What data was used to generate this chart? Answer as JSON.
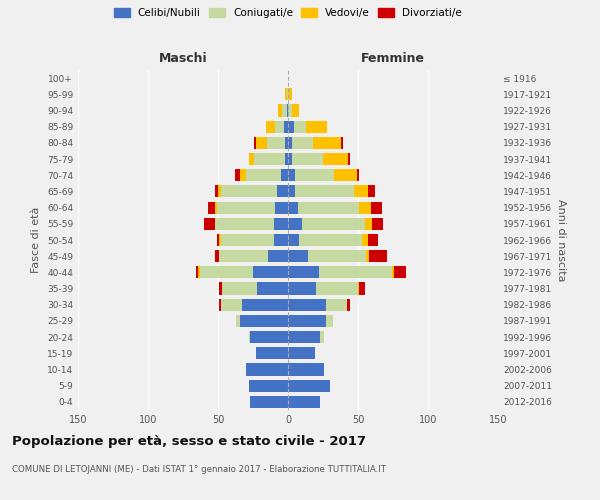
{
  "age_groups": [
    "0-4",
    "5-9",
    "10-14",
    "15-19",
    "20-24",
    "25-29",
    "30-34",
    "35-39",
    "40-44",
    "45-49",
    "50-54",
    "55-59",
    "60-64",
    "65-69",
    "70-74",
    "75-79",
    "80-84",
    "85-89",
    "90-94",
    "95-99",
    "100+"
  ],
  "birth_years": [
    "2012-2016",
    "2007-2011",
    "2002-2006",
    "1997-2001",
    "1992-1996",
    "1987-1991",
    "1982-1986",
    "1977-1981",
    "1972-1976",
    "1967-1971",
    "1962-1966",
    "1957-1961",
    "1952-1956",
    "1947-1951",
    "1942-1946",
    "1937-1941",
    "1932-1936",
    "1927-1931",
    "1922-1926",
    "1917-1921",
    "≤ 1916"
  ],
  "maschi": {
    "celibi": [
      27,
      28,
      30,
      23,
      27,
      34,
      33,
      22,
      25,
      14,
      10,
      10,
      9,
      8,
      5,
      2,
      2,
      3,
      1,
      0,
      0
    ],
    "coniugati": [
      0,
      0,
      0,
      0,
      1,
      3,
      15,
      25,
      38,
      35,
      38,
      42,
      42,
      40,
      25,
      22,
      13,
      6,
      3,
      1,
      0
    ],
    "vedovi": [
      0,
      0,
      0,
      0,
      0,
      0,
      0,
      0,
      1,
      0,
      1,
      0,
      1,
      2,
      4,
      4,
      8,
      7,
      3,
      1,
      0
    ],
    "divorziati": [
      0,
      0,
      0,
      0,
      0,
      0,
      1,
      2,
      2,
      3,
      2,
      8,
      5,
      2,
      4,
      0,
      1,
      0,
      0,
      0,
      0
    ]
  },
  "femmine": {
    "nubili": [
      23,
      30,
      26,
      19,
      23,
      27,
      27,
      20,
      22,
      14,
      8,
      10,
      7,
      5,
      5,
      3,
      3,
      4,
      0,
      0,
      0
    ],
    "coniugate": [
      0,
      0,
      0,
      0,
      3,
      5,
      15,
      30,
      52,
      42,
      45,
      45,
      44,
      42,
      28,
      22,
      15,
      9,
      3,
      1,
      0
    ],
    "vedove": [
      0,
      0,
      0,
      0,
      0,
      0,
      0,
      1,
      2,
      2,
      4,
      5,
      8,
      10,
      16,
      18,
      20,
      15,
      5,
      2,
      0
    ],
    "divorziate": [
      0,
      0,
      0,
      0,
      0,
      0,
      2,
      4,
      8,
      13,
      7,
      8,
      8,
      5,
      2,
      1,
      1,
      0,
      0,
      0,
      0
    ]
  },
  "colors": {
    "celibi": "#4472c4",
    "coniugati": "#c5d9a0",
    "vedovi": "#ffc000",
    "divorziati": "#cc0000"
  },
  "xlim": 150,
  "title": "Popolazione per età, sesso e stato civile - 2017",
  "subtitle": "COMUNE DI LETOJANNI (ME) - Dati ISTAT 1° gennaio 2017 - Elaborazione TUTTITALIA.IT",
  "ylabel_left": "Fasce di età",
  "ylabel_right": "Anni di nascita",
  "xlabel_left": "Maschi",
  "xlabel_right": "Femmine",
  "background_color": "#f0f0f0"
}
